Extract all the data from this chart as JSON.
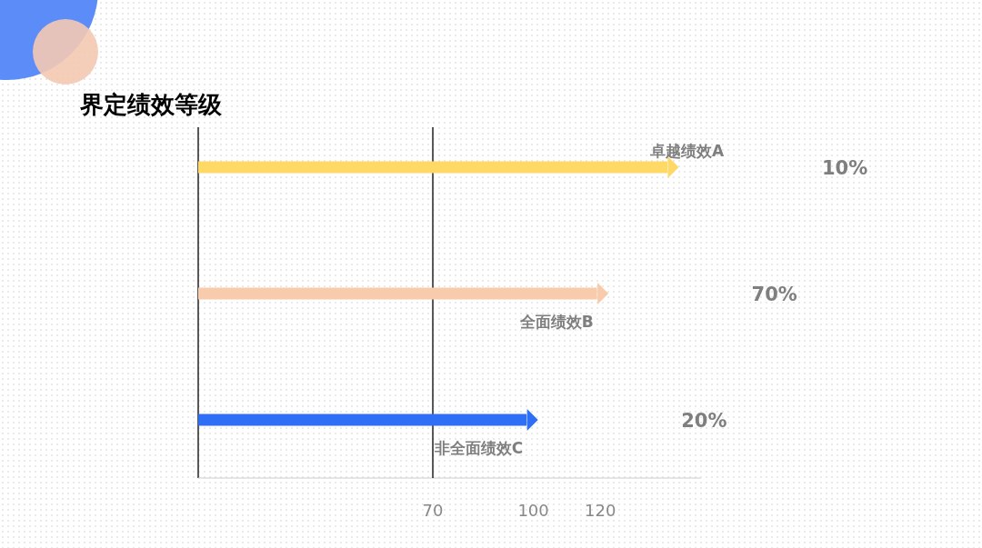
{
  "chart_data": {
    "type": "bar",
    "orientation": "horizontal",
    "title": "界定绩效等级",
    "categories": [
      "卓越绩效A",
      "全面绩效B",
      "非全面绩效C"
    ],
    "values": [
      140,
      119,
      98
    ],
    "colors": [
      "#ffd966",
      "#f8cbad",
      "#2f6ff5"
    ],
    "annotations": [
      "10%",
      "70%",
      "20%"
    ],
    "xlim": [
      0,
      150
    ],
    "xticks": [
      70,
      100,
      120
    ],
    "ref_lines": [
      {
        "axis": "x",
        "value": 70,
        "color": "#222222"
      }
    ]
  }
}
